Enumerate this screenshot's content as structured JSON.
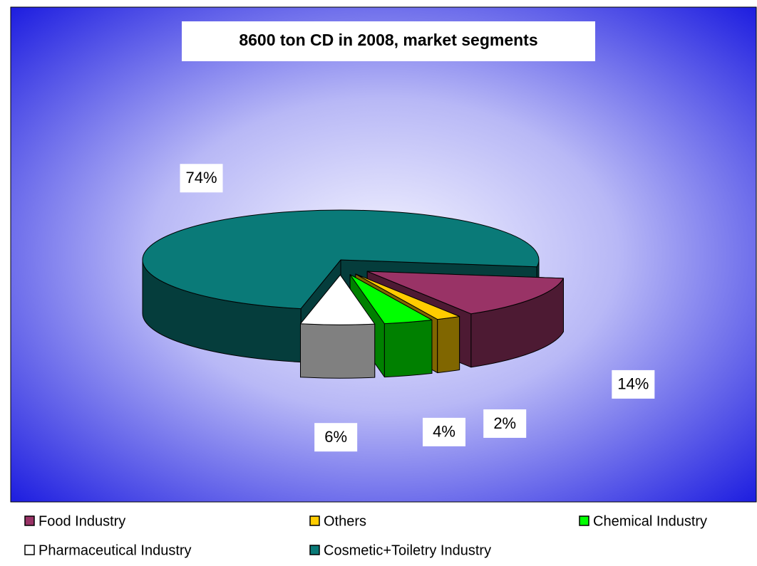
{
  "chart_data": {
    "type": "pie",
    "title": "8600 ton CD in 2008, market segments",
    "categories": [
      "Food Industry",
      "Others",
      "Chemical Industry",
      "Pharmaceutical Industry",
      "Cosmetic+Toiletry Industry"
    ],
    "values": [
      14,
      2,
      4,
      6,
      74
    ],
    "value_labels": [
      "14%",
      "2%",
      "4%",
      "6%",
      "74%"
    ],
    "colors": [
      "#993366",
      "#ffcc00",
      "#00ff00",
      "#ffffff",
      "#0a7a78"
    ],
    "legend": "bottom"
  }
}
